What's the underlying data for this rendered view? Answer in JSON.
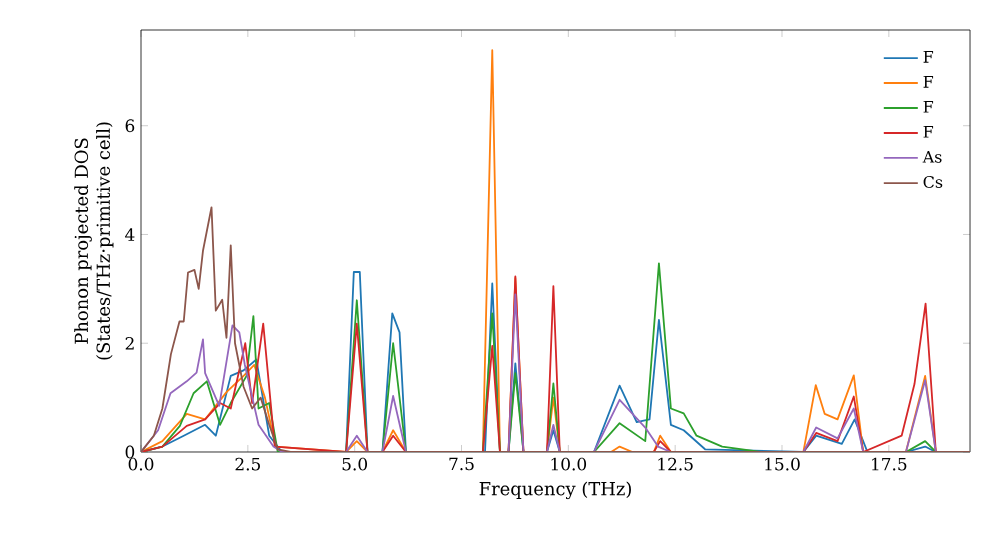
{
  "chart_data": {
    "type": "line",
    "xlabel": "Frequency (THz)",
    "ylabel": "Phonon projected DOS\n(States/THz·primitive cell)",
    "xlim": [
      0,
      19.4
    ],
    "ylim": [
      0,
      7.76
    ],
    "xticks": [
      {
        "value": 0,
        "label": "0.0"
      },
      {
        "value": 2.5,
        "label": "2.5"
      },
      {
        "value": 5,
        "label": "5.0"
      },
      {
        "value": 7.5,
        "label": "7.5"
      },
      {
        "value": 10,
        "label": "10.0"
      },
      {
        "value": 12.5,
        "label": "12.5"
      },
      {
        "value": 15,
        "label": "15.0"
      },
      {
        "value": 17.5,
        "label": "17.5"
      }
    ],
    "yticks": [
      0,
      2,
      4,
      6
    ],
    "legend": "top right",
    "grid": false,
    "marker": "none",
    "line_style": "solid",
    "series": [
      {
        "name": "F",
        "color": "#1f77b4",
        "x": [
          0,
          0.5,
          1.0,
          1.5,
          1.75,
          2.1,
          2.4,
          2.7,
          3.0,
          3.3,
          4.8,
          4.98,
          5.12,
          5.3,
          5.65,
          5.88,
          6.05,
          6.2,
          8.05,
          8.22,
          8.4,
          8.6,
          8.76,
          8.95,
          9.5,
          9.65,
          9.8,
          10.6,
          11.2,
          11.6,
          11.9,
          12.12,
          12.4,
          12.7,
          13.2,
          15.5,
          15.8,
          16.4,
          16.7,
          17.0,
          17.9,
          18.35,
          18.6,
          19.4
        ],
        "values": [
          0,
          0.1,
          0.3,
          0.5,
          0.3,
          1.4,
          1.5,
          1.7,
          0.3,
          0,
          0,
          3.31,
          3.31,
          0,
          0,
          2.55,
          2.2,
          0,
          0,
          3.1,
          0,
          0,
          1.63,
          0,
          0,
          0.4,
          0,
          0,
          1.22,
          0.55,
          0.6,
          2.43,
          0.5,
          0.4,
          0.05,
          0,
          0.3,
          0.15,
          0.6,
          0,
          0,
          0.1,
          0,
          0
        ]
      },
      {
        "name": "F",
        "color": "#ff7f0e",
        "x": [
          0,
          0.5,
          1.07,
          1.5,
          2.0,
          2.4,
          2.65,
          2.9,
          3.15,
          4.8,
          5.05,
          5.3,
          5.65,
          5.9,
          6.2,
          8.0,
          8.22,
          8.4,
          8.6,
          8.76,
          8.95,
          9.5,
          9.65,
          9.8,
          11.0,
          11.2,
          11.5,
          12.0,
          12.15,
          12.4,
          15.5,
          15.79,
          16.0,
          16.3,
          16.68,
          16.9,
          17.9,
          18.35,
          18.6,
          19.4
        ],
        "values": [
          0,
          0.2,
          0.7,
          0.6,
          1.1,
          1.4,
          1.6,
          1.0,
          0.1,
          0,
          0.2,
          0,
          0,
          0.4,
          0,
          0,
          7.39,
          0,
          0,
          3.2,
          0,
          0,
          1.0,
          0,
          0,
          0.1,
          0,
          0,
          0.3,
          0,
          0,
          1.23,
          0.7,
          0.6,
          1.41,
          0,
          0,
          1.4,
          0,
          0
        ]
      },
      {
        "name": "F",
        "color": "#2ca02c",
        "x": [
          0,
          0.5,
          0.91,
          1.23,
          1.54,
          1.85,
          2.1,
          2.47,
          2.63,
          2.75,
          3.0,
          3.2,
          4.8,
          5.05,
          5.3,
          5.65,
          5.9,
          6.2,
          8.0,
          8.22,
          8.4,
          8.6,
          8.76,
          8.95,
          9.5,
          9.65,
          9.8,
          10.6,
          11.2,
          11.8,
          12.12,
          12.4,
          12.7,
          13.0,
          13.6,
          14.5,
          17.9,
          18.35,
          18.6,
          19.4
        ],
        "values": [
          0,
          0.1,
          0.48,
          1.08,
          1.3,
          0.5,
          0.9,
          1.4,
          2.5,
          0.8,
          0.9,
          0,
          0,
          2.79,
          0,
          0,
          2.0,
          0,
          0,
          2.55,
          0,
          0,
          1.45,
          0,
          0,
          1.26,
          0,
          0,
          0.53,
          0.2,
          3.47,
          0.8,
          0.71,
          0.3,
          0.1,
          0,
          0,
          0.2,
          0,
          0
        ]
      },
      {
        "name": "F",
        "color": "#d62728",
        "x": [
          0,
          0.5,
          1.07,
          1.5,
          1.85,
          2.1,
          2.44,
          2.6,
          2.86,
          3.13,
          4.8,
          5.05,
          5.3,
          5.65,
          5.9,
          6.2,
          8.0,
          8.22,
          8.4,
          8.6,
          8.76,
          8.95,
          9.5,
          9.65,
          9.8,
          12.0,
          12.15,
          12.4,
          15.5,
          15.8,
          16.3,
          16.68,
          16.9,
          17.8,
          18.1,
          18.36,
          18.6,
          19.4
        ],
        "values": [
          0,
          0.1,
          0.48,
          0.6,
          0.9,
          0.8,
          2.0,
          0.9,
          2.36,
          0.1,
          0,
          2.36,
          0,
          0,
          0.3,
          0,
          0,
          1.95,
          0,
          0,
          3.23,
          0,
          0,
          3.05,
          0,
          0,
          0.2,
          0,
          0,
          0.35,
          0.2,
          1.02,
          0,
          0.3,
          1.25,
          2.73,
          0,
          0
        ]
      },
      {
        "name": "As",
        "color": "#9467bd",
        "x": [
          0,
          0.4,
          0.69,
          1.07,
          1.3,
          1.45,
          1.5,
          1.83,
          2.14,
          2.3,
          2.43,
          2.75,
          3.1,
          3.3,
          4.8,
          5.05,
          5.3,
          5.65,
          5.9,
          6.2,
          8.6,
          8.76,
          8.95,
          9.5,
          9.65,
          9.8,
          10.6,
          11.2,
          11.8,
          12.1,
          12.4,
          15.5,
          15.8,
          16.3,
          16.68,
          16.9,
          17.9,
          18.35,
          18.6,
          19.4
        ],
        "values": [
          0,
          0.4,
          1.08,
          1.3,
          1.46,
          2.07,
          1.45,
          0.85,
          2.33,
          2.2,
          1.6,
          0.5,
          0.1,
          0,
          0,
          0.3,
          0,
          0,
          1.03,
          0,
          0,
          2.9,
          0,
          0,
          0.5,
          0,
          0,
          0.96,
          0.45,
          0.1,
          0,
          0,
          0.45,
          0.25,
          0.8,
          0,
          0,
          1.32,
          0,
          0
        ]
      },
      {
        "name": "Cs",
        "color": "#8c564b",
        "x": [
          0,
          0.3,
          0.5,
          0.7,
          0.9,
          1.0,
          1.1,
          1.25,
          1.35,
          1.45,
          1.65,
          1.75,
          1.9,
          2.0,
          2.1,
          2.2,
          2.4,
          2.6,
          2.8,
          3.0,
          3.2,
          3.5,
          19.4
        ],
        "values": [
          0,
          0.3,
          0.8,
          1.8,
          2.4,
          2.4,
          3.3,
          3.35,
          3.0,
          3.7,
          4.5,
          2.6,
          2.8,
          2.1,
          3.8,
          2.0,
          1.2,
          0.8,
          1.0,
          0.5,
          0.05,
          0,
          0
        ]
      }
    ]
  }
}
